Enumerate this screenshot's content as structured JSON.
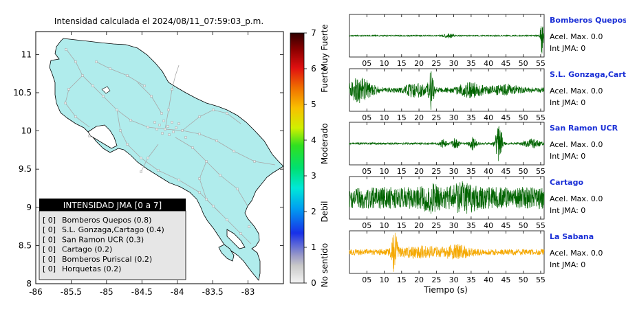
{
  "map_panel": {
    "title": "Intensidad calculada el 2024/08/11_07:59:03_p.m.",
    "map_fill": "#b0ecec",
    "legend": {
      "header": "INTENSIDAD JMA [0 a 7]",
      "items": [
        {
          "level": "[ 0]",
          "name": "Bomberos Quepos (0.8)"
        },
        {
          "level": "[ 0]",
          "name": "S.L. Gonzaga,Cartago (0.4)"
        },
        {
          "level": "[ 0]",
          "name": "San Ramon UCR (0.3)"
        },
        {
          "level": "[ 0]",
          "name": "Cartago (0.2)"
        },
        {
          "level": "[ 0]",
          "name": "Bomberos Puriscal (0.2)"
        },
        {
          "level": "[ 0]",
          "name": "Horquetas (0.2)"
        }
      ]
    },
    "colorbar": {
      "ticks": [
        "0",
        "1",
        "2",
        "3",
        "4",
        "5",
        "6",
        "7"
      ],
      "labels": [
        "No sentido",
        "Debil",
        "Moderado",
        "Fuerte",
        "Muy Fuerte"
      ]
    }
  },
  "chart_data": [
    {
      "type": "map",
      "xlim": [
        -86,
        -82.5
      ],
      "ylim": [
        8,
        11.3
      ],
      "x_ticks": [
        "-86",
        "-85.5",
        "-85",
        "-84.5",
        "-84",
        "-83.5",
        "-83"
      ],
      "y_ticks": [
        "8",
        "8.5",
        "9",
        "9.5",
        "10",
        "10.5",
        "11"
      ]
    },
    {
      "type": "line",
      "xlabel": "Tiempo (s)",
      "x_ticks": [
        "05",
        "10",
        "15",
        "20",
        "25",
        "30",
        "35",
        "40",
        "45",
        "50",
        "55"
      ],
      "xlim": [
        0,
        56
      ],
      "series": [
        {
          "name": "Bomberos Quepos",
          "accel_label": "Acel. Max. 0.0",
          "int_label": "Int JMA: 0",
          "color": "#006400",
          "base_amp": 0.03,
          "burst": [
            [
              55.3,
              0.9,
              0.4
            ],
            [
              28.6,
              0.1,
              1.5
            ]
          ]
        },
        {
          "name": "S.L. Gonzaga,Cartago",
          "accel_label": "Acel. Max. 0.0",
          "int_label": "Int JMA: 0",
          "color": "#006400",
          "base_amp": 0.12,
          "burst": [
            [
              3.0,
              0.55,
              3.5
            ],
            [
              19.0,
              0.3,
              3.0
            ],
            [
              23.5,
              0.85,
              0.8
            ],
            [
              35.0,
              0.3,
              4.0
            ],
            [
              45.0,
              0.2,
              4.0
            ]
          ]
        },
        {
          "name": "San Ramon UCR",
          "accel_label": "Acel. Max. 0.0",
          "int_label": "Int JMA: 0",
          "color": "#006400",
          "base_amp": 0.05,
          "burst": [
            [
              27.0,
              0.2,
              1.0
            ],
            [
              30.5,
              0.25,
              1.0
            ],
            [
              35.5,
              0.3,
              1.0
            ],
            [
              43.0,
              0.95,
              1.0
            ],
            [
              52.5,
              0.2,
              2.5
            ]
          ]
        },
        {
          "name": "Cartago",
          "accel_label": "Acel. Max. 0.0",
          "int_label": "Int JMA: 0",
          "color": "#006400",
          "base_amp": 0.55,
          "burst": [
            [
              33.0,
              0.35,
              3.0
            ],
            [
              23.5,
              0.3,
              2.0
            ]
          ]
        },
        {
          "name": "La Sabana",
          "accel_label": "Acel. Max. 0.0",
          "int_label": "Int JMA: 0",
          "color": "#f5a800",
          "base_amp": 0.15,
          "burst": [
            [
              13.0,
              0.9,
              0.8
            ],
            [
              20.0,
              0.2,
              6.0
            ],
            [
              31.0,
              0.25,
              4.0
            ]
          ]
        }
      ]
    }
  ]
}
